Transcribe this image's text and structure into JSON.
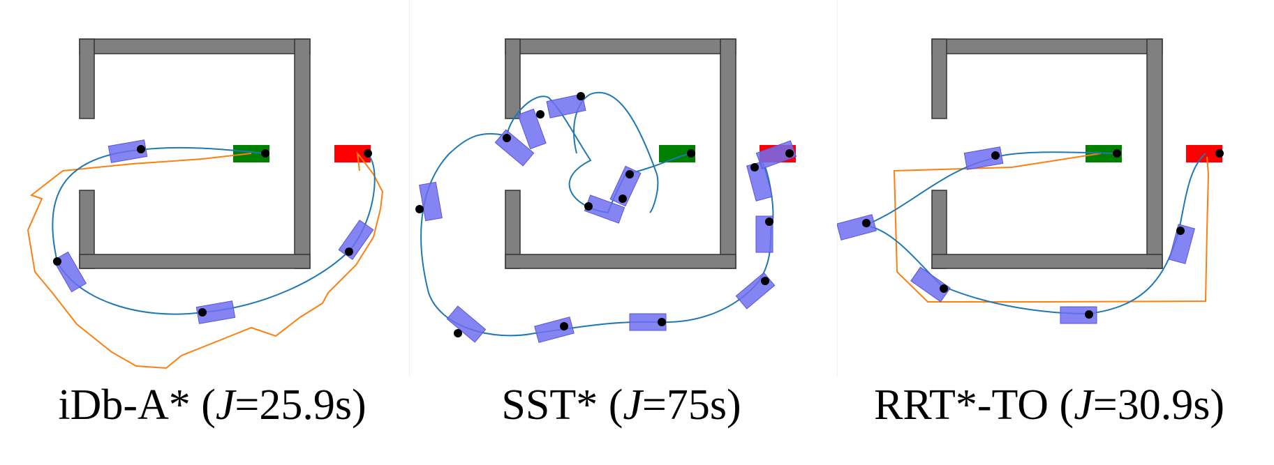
{
  "panels": [
    {
      "method": "iDb-A*",
      "cost_symbol": "J",
      "cost_value": "=25.9s"
    },
    {
      "method": "SST*",
      "cost_symbol": "J",
      "cost_value": "=75s"
    },
    {
      "method": "RRT*-TO",
      "cost_symbol": "J",
      "cost_value": "=30.9s"
    }
  ],
  "colors": {
    "wall": "#808080",
    "wall_edge": "#333333",
    "start": "#008000",
    "goal": "#ff0000",
    "robot": "#6f6ff0",
    "path": "#1f77b4",
    "search_path": "#ff7f0e",
    "marker": "#000000"
  }
}
